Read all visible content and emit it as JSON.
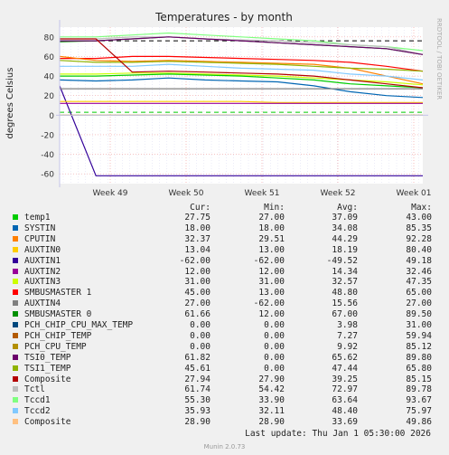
{
  "chart_data": {
    "type": "line",
    "title": "Temperatures - by month",
    "ylabel": "degrees Celsius",
    "side_label": "RRDTOOL / TOBI OETIKER",
    "ylim": [
      -70,
      90
    ],
    "y_ticks": [
      "80",
      "60",
      "40",
      "20",
      "0",
      "-20",
      "-40",
      "-60"
    ],
    "x_ticks": [
      "Week 49",
      "Week 50",
      "Week 51",
      "Week 52",
      "Week 01"
    ],
    "legend_headers": {
      "cur": "Cur:",
      "min": "Min:",
      "avg": "Avg:",
      "max": "Max:"
    },
    "series": [
      {
        "name": "temp1",
        "color": "#00cc00",
        "cur": "27.75",
        "min": "27.00",
        "avg": "37.09",
        "max": "43.00"
      },
      {
        "name": "SYSTIN",
        "color": "#0066b3",
        "cur": "18.00",
        "min": "18.00",
        "avg": "34.08",
        "max": "85.35"
      },
      {
        "name": "CPUTIN",
        "color": "#ff8000",
        "cur": "32.37",
        "min": "29.51",
        "avg": "44.29",
        "max": "92.28"
      },
      {
        "name": "AUXTIN0",
        "color": "#ffcc00",
        "cur": "13.04",
        "min": "13.00",
        "avg": "18.19",
        "max": "80.40"
      },
      {
        "name": "AUXTIN1",
        "color": "#330099",
        "cur": "-62.00",
        "min": "-62.00",
        "avg": "-49.52",
        "max": "49.18"
      },
      {
        "name": "AUXTIN2",
        "color": "#990099",
        "cur": "12.00",
        "min": "12.00",
        "avg": "14.34",
        "max": "32.46"
      },
      {
        "name": "AUXTIN3",
        "color": "#ccff00",
        "cur": "31.00",
        "min": "31.00",
        "avg": "32.57",
        "max": "47.35"
      },
      {
        "name": "SMBUSMASTER 1",
        "color": "#ff0000",
        "cur": "45.00",
        "min": "13.00",
        "avg": "48.80",
        "max": "65.00"
      },
      {
        "name": "AUXTIN4",
        "color": "#808080",
        "cur": "27.00",
        "min": "-62.00",
        "avg": "15.56",
        "max": "27.00"
      },
      {
        "name": "SMBUSMASTER 0",
        "color": "#008f00",
        "cur": "61.66",
        "min": "12.00",
        "avg": "67.00",
        "max": "89.50"
      },
      {
        "name": "PCH_CHIP_CPU_MAX_TEMP",
        "color": "#00487d",
        "cur": "0.00",
        "min": "0.00",
        "avg": "3.98",
        "max": "31.00"
      },
      {
        "name": "PCH_CHIP_TEMP",
        "color": "#b35a00",
        "cur": "0.00",
        "min": "0.00",
        "avg": "7.27",
        "max": "59.94"
      },
      {
        "name": "PCH_CPU_TEMP",
        "color": "#b38f00",
        "cur": "0.00",
        "min": "0.00",
        "avg": "9.92",
        "max": "85.12"
      },
      {
        "name": "TSI0_TEMP",
        "color": "#6b006b",
        "cur": "61.82",
        "min": "0.00",
        "avg": "65.62",
        "max": "89.80"
      },
      {
        "name": "TSI1_TEMP",
        "color": "#8fb300",
        "cur": "45.61",
        "min": "0.00",
        "avg": "47.44",
        "max": "65.80"
      },
      {
        "name": "Composite",
        "color": "#b30000",
        "cur": "27.94",
        "min": "27.90",
        "avg": "39.25",
        "max": "85.15"
      },
      {
        "name": "Tctl",
        "color": "#bebebe",
        "cur": "61.74",
        "min": "54.42",
        "avg": "72.97",
        "max": "89.78"
      },
      {
        "name": "Tccd1",
        "color": "#80ff80",
        "cur": "55.30",
        "min": "33.90",
        "avg": "63.64",
        "max": "93.67"
      },
      {
        "name": "Tccd2",
        "color": "#80c9ff",
        "cur": "35.93",
        "min": "32.11",
        "avg": "48.40",
        "max": "75.97"
      },
      {
        "name": "Composite",
        "color": "#ffc080",
        "cur": "28.90",
        "min": "28.90",
        "avg": "33.69",
        "max": "49.86"
      }
    ],
    "plot_series": [
      {
        "name": "Tccd1",
        "color": "#80ff80",
        "values": [
          80,
          80,
          82,
          84,
          82,
          80,
          78,
          76,
          72,
          70,
          66
        ]
      },
      {
        "name": "SMBUSMASTER 0",
        "color": "#008f00",
        "values": [
          75,
          76,
          78,
          80,
          78,
          76,
          74,
          72,
          70,
          68,
          62
        ]
      },
      {
        "name": "Tctl",
        "color": "#bebebe",
        "values": [
          78,
          78,
          80,
          80,
          78,
          77,
          76,
          74,
          72,
          70,
          62
        ]
      },
      {
        "name": "TSI0_TEMP",
        "color": "#6b006b",
        "values": [
          76,
          76,
          78,
          80,
          78,
          76,
          74,
          72,
          70,
          68,
          62
        ]
      },
      {
        "name": "SMBUSMASTER 1",
        "color": "#ff0000",
        "values": [
          58,
          58,
          60,
          60,
          59,
          58,
          57,
          56,
          54,
          50,
          45
        ]
      },
      {
        "name": "CPUTIN",
        "color": "#ff8000",
        "values": [
          60,
          56,
          55,
          56,
          55,
          54,
          53,
          52,
          48,
          40,
          32
        ]
      },
      {
        "name": "TSI1_TEMP",
        "color": "#8fb300",
        "values": [
          56,
          54,
          54,
          55,
          54,
          53,
          52,
          50,
          48,
          47,
          45
        ]
      },
      {
        "name": "Tccd2",
        "color": "#80c9ff",
        "values": [
          50,
          50,
          50,
          52,
          50,
          48,
          47,
          46,
          42,
          40,
          36
        ]
      },
      {
        "name": "AUXTIN3",
        "color": "#ccff00",
        "values": [
          42,
          42,
          43,
          43,
          42,
          41,
          40,
          38,
          36,
          34,
          31
        ]
      },
      {
        "name": "temp1",
        "color": "#00cc00",
        "values": [
          40,
          40,
          41,
          42,
          41,
          40,
          38,
          36,
          32,
          30,
          28
        ]
      },
      {
        "name": "Composite",
        "color": "#b30000",
        "values": [
          78,
          78,
          44,
          45,
          44,
          43,
          42,
          40,
          36,
          32,
          28
        ]
      },
      {
        "name": "SYSTIN",
        "color": "#0066b3",
        "values": [
          36,
          35,
          36,
          38,
          36,
          35,
          34,
          30,
          24,
          20,
          18
        ]
      },
      {
        "name": "AUXTIN1",
        "color": "#330099",
        "values": [
          30,
          -62,
          -62,
          -62,
          -62,
          -62,
          -62,
          -62,
          -62,
          -62,
          -62
        ]
      },
      {
        "name": "AUXTIN0",
        "color": "#ffcc00",
        "values": [
          14,
          14,
          14,
          14,
          14,
          14,
          13,
          13,
          13,
          13,
          13
        ]
      },
      {
        "name": "AUXTIN2",
        "color": "#990099",
        "values": [
          12,
          12,
          12,
          12,
          12,
          12,
          12,
          12,
          12,
          12,
          12
        ]
      },
      {
        "name": "AUXTIN4",
        "color": "#808080",
        "values": [
          27,
          27,
          27,
          27,
          27,
          27,
          27,
          27,
          27,
          27,
          27
        ]
      },
      {
        "name": "PCH_CPU_TEMP",
        "color": "#b38f00",
        "values": [
          0,
          0,
          0,
          0,
          0,
          0,
          0,
          0,
          0,
          0,
          0
        ]
      }
    ],
    "dashed_limits": [
      {
        "value": 76,
        "color": "#000000"
      },
      {
        "value": 3,
        "color": "#00cc00"
      }
    ]
  },
  "footer": {
    "last_update": "Last update:  Thu Jan  1 05:30:00 2026",
    "generator": "Munin 2.0.73"
  }
}
